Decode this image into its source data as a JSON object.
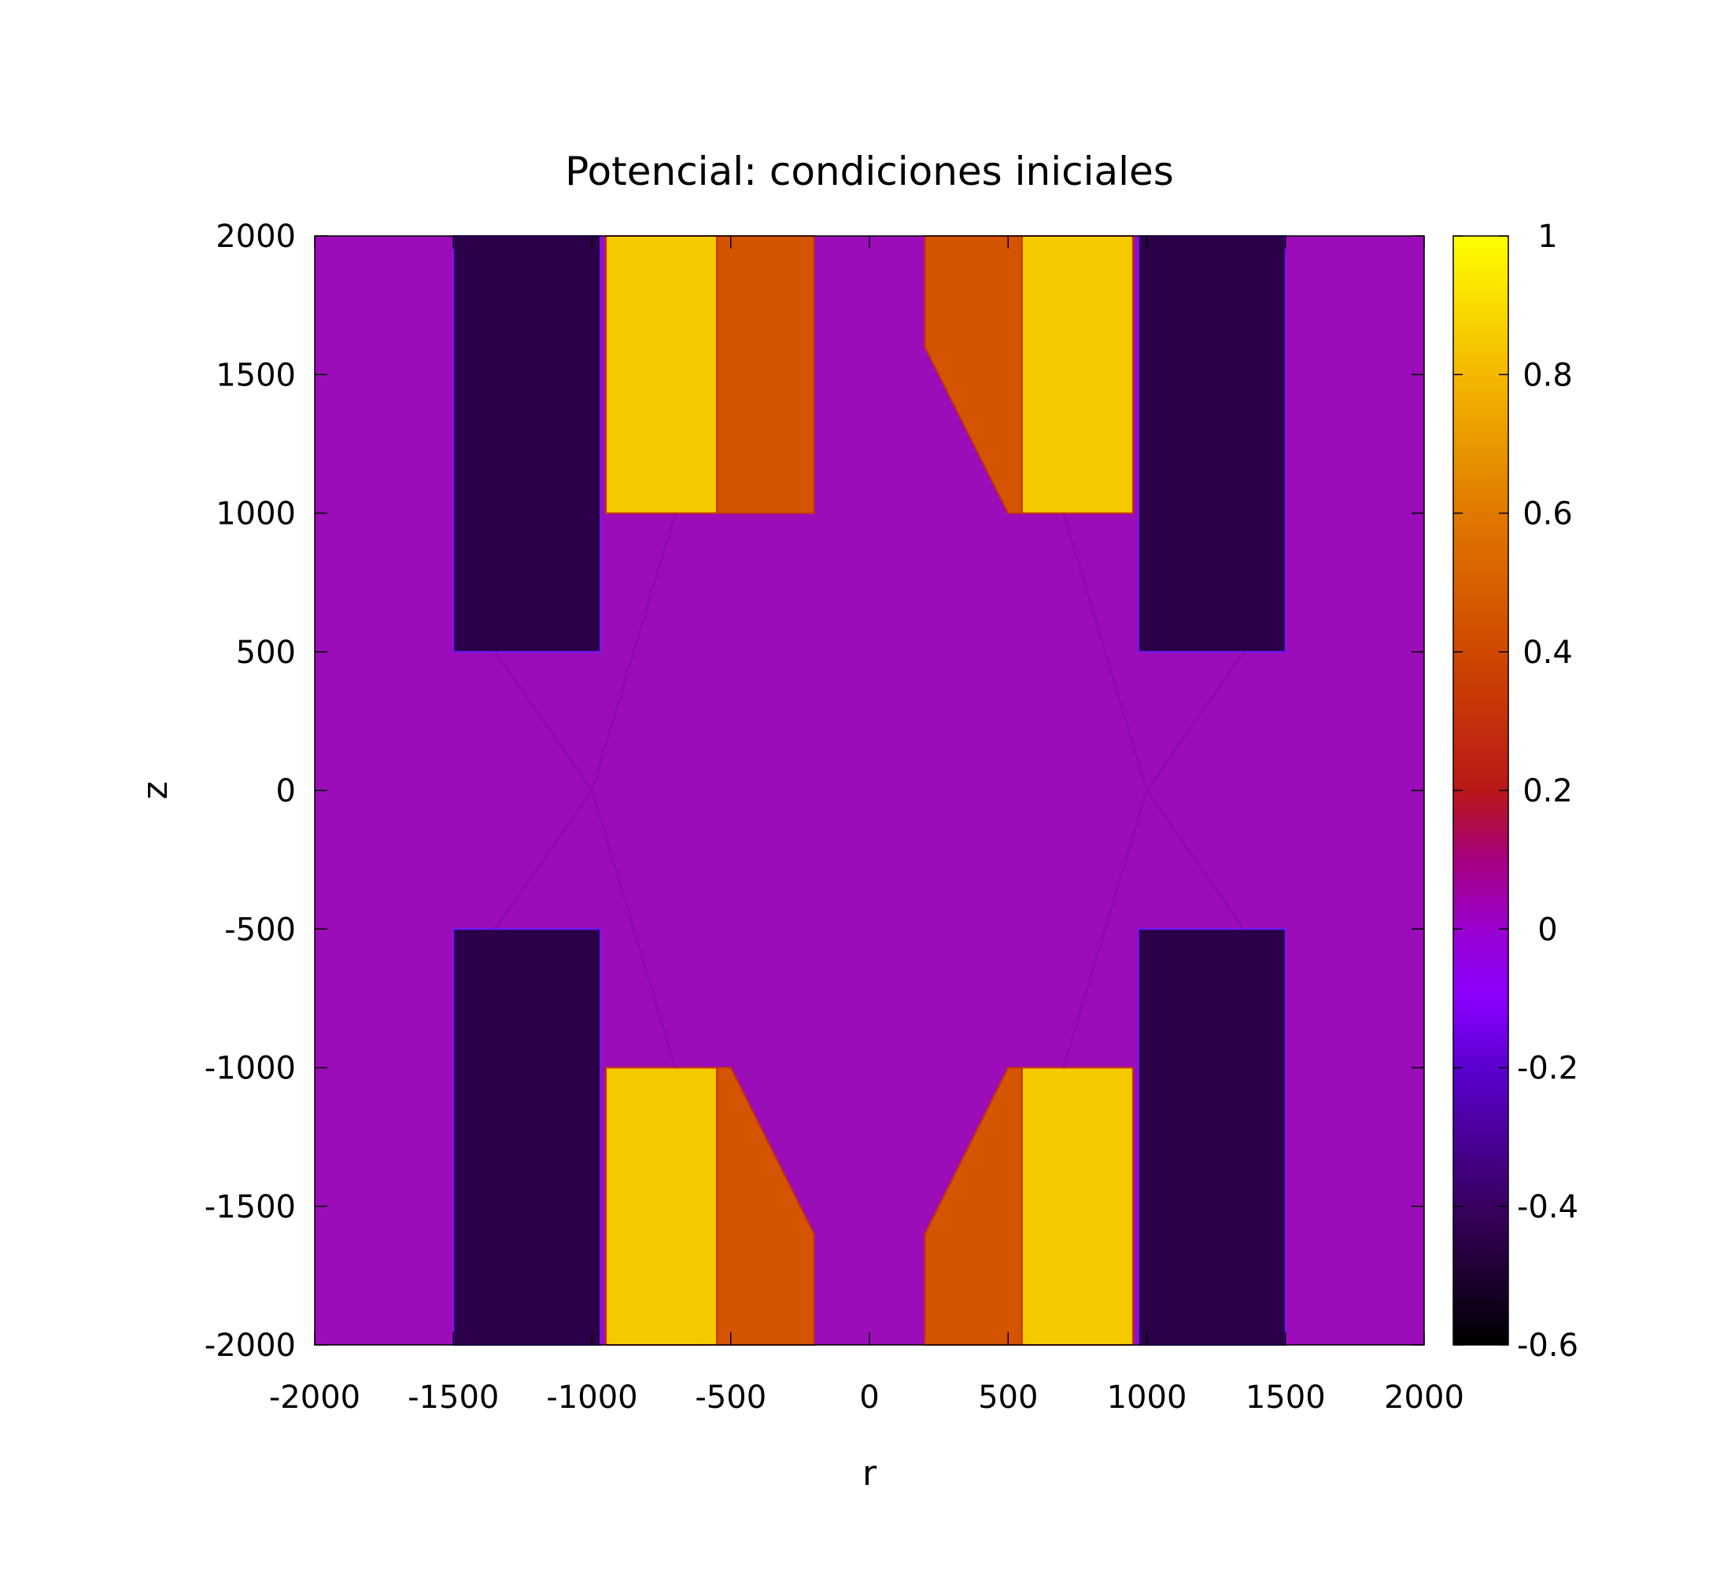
{
  "chart_data": {
    "type": "heatmap",
    "title": "Potencial: condiciones iniciales",
    "xlabel": "r",
    "ylabel": "z",
    "xlim": [
      -2000,
      2000
    ],
    "ylim": [
      -2000,
      2000
    ],
    "xticks": [
      "-2000",
      "-1500",
      "-1000",
      "-500",
      "0",
      "500",
      "1000",
      "1500",
      "2000"
    ],
    "yticks": [
      "-2000",
      "-1500",
      "-1000",
      "-500",
      "0",
      "500",
      "1000",
      "1500",
      "2000"
    ],
    "colorbar": {
      "range": [
        -0.6,
        1
      ],
      "ticks": [
        "-0.6",
        "-0.4",
        "-0.2",
        "0",
        "0.2",
        "0.4",
        "0.6",
        "0.8",
        "1"
      ]
    },
    "background_value": 0,
    "regions": [
      {
        "value": -0.45,
        "points": [
          [
            -1500,
            2000
          ],
          [
            -970,
            2000
          ],
          [
            -970,
            500
          ],
          [
            -1500,
            500
          ]
        ]
      },
      {
        "value": 0.85,
        "points": [
          [
            -950,
            2000
          ],
          [
            -550,
            2000
          ],
          [
            -550,
            1000
          ],
          [
            -950,
            1000
          ]
        ]
      },
      {
        "value": 0.45,
        "points": [
          [
            -550,
            2000
          ],
          [
            -200,
            2000
          ],
          [
            -200,
            1000
          ],
          [
            -550,
            1000
          ]
        ]
      },
      {
        "value": 0.45,
        "points": [
          [
            200,
            2000
          ],
          [
            550,
            2000
          ],
          [
            550,
            1000
          ],
          [
            500,
            1000
          ],
          [
            200,
            1600
          ]
        ]
      },
      {
        "value": 0.85,
        "points": [
          [
            550,
            2000
          ],
          [
            950,
            2000
          ],
          [
            950,
            1000
          ],
          [
            550,
            1000
          ]
        ]
      },
      {
        "value": -0.45,
        "points": [
          [
            970,
            2000
          ],
          [
            1500,
            2000
          ],
          [
            1500,
            500
          ],
          [
            970,
            500
          ]
        ]
      },
      {
        "value": -0.45,
        "points": [
          [
            -1500,
            -500
          ],
          [
            -970,
            -500
          ],
          [
            -970,
            -2000
          ],
          [
            -1500,
            -2000
          ]
        ]
      },
      {
        "value": 0.85,
        "points": [
          [
            -950,
            -1000
          ],
          [
            -550,
            -1000
          ],
          [
            -550,
            -2000
          ],
          [
            -950,
            -2000
          ]
        ]
      },
      {
        "value": 0.45,
        "points": [
          [
            -550,
            -1000
          ],
          [
            -500,
            -1000
          ],
          [
            -200,
            -1600
          ],
          [
            -200,
            -2000
          ],
          [
            -550,
            -2000
          ]
        ]
      },
      {
        "value": 0.45,
        "points": [
          [
            200,
            -1600
          ],
          [
            500,
            -1000
          ],
          [
            550,
            -1000
          ],
          [
            550,
            -2000
          ],
          [
            200,
            -2000
          ]
        ]
      },
      {
        "value": 0.85,
        "points": [
          [
            550,
            -1000
          ],
          [
            950,
            -1000
          ],
          [
            950,
            -2000
          ],
          [
            550,
            -2000
          ]
        ]
      },
      {
        "value": -0.45,
        "points": [
          [
            970,
            -500
          ],
          [
            1500,
            -500
          ],
          [
            1500,
            -2000
          ],
          [
            970,
            -2000
          ]
        ]
      }
    ]
  }
}
